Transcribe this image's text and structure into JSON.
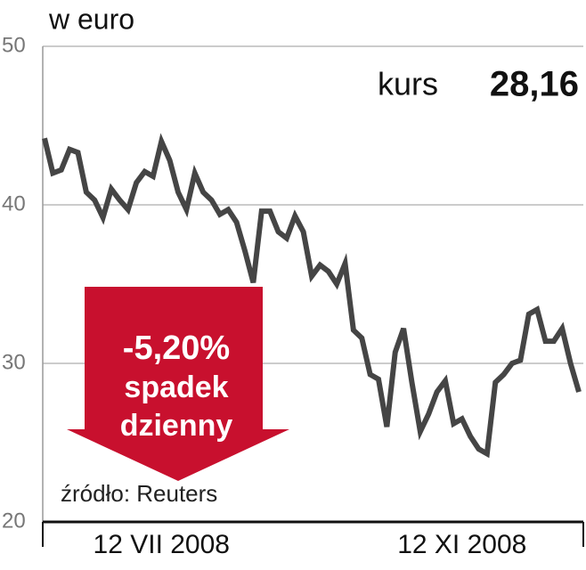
{
  "chart_data": {
    "type": "line",
    "title": "w euro",
    "annotations": {
      "kurs_label": "kurs",
      "kurs_value": "28,16",
      "change": "-5,20%",
      "line1": "spadek",
      "line2": "dzienny",
      "source": "źródło: Reuters"
    },
    "categories": [
      null,
      null,
      null,
      null,
      null,
      null,
      null,
      null,
      null,
      null,
      null,
      null,
      null,
      null,
      "12 VII 2008",
      null,
      null,
      null,
      null,
      null,
      null,
      null,
      null,
      null,
      null,
      null,
      null,
      null,
      null,
      null,
      null,
      null,
      null,
      null,
      null,
      null,
      null,
      null,
      null,
      null,
      null,
      null,
      null,
      null,
      null,
      null,
      null,
      null,
      null,
      null,
      "12 XI 2008",
      null,
      null,
      null,
      null,
      null,
      null,
      null,
      null,
      null,
      null,
      null,
      null,
      null,
      null
    ],
    "series": [
      {
        "name": "kurs",
        "color": "#454545",
        "values": [
          44.2,
          42.0,
          42.2,
          43.5,
          43.3,
          40.8,
          40.3,
          39.2,
          41.0,
          40.3,
          39.7,
          41.4,
          42.1,
          41.8,
          44.0,
          42.8,
          40.8,
          39.7,
          42.0,
          40.8,
          40.3,
          39.4,
          39.7,
          38.9,
          37.1,
          35.1,
          39.6,
          39.6,
          38.3,
          37.9,
          39.3,
          38.3,
          35.5,
          36.2,
          35.8,
          35.0,
          36.3,
          32.1,
          31.6,
          29.3,
          29.0,
          26.0,
          30.7,
          32.2,
          28.8,
          25.7,
          26.8,
          28.2,
          28.9,
          26.2,
          26.5,
          25.4,
          24.6,
          24.3,
          28.8,
          29.3,
          30.0,
          30.2,
          33.1,
          33.4,
          31.4,
          31.4,
          32.2,
          30.0,
          28.2
        ]
      }
    ],
    "ylim": [
      20,
      50
    ],
    "yticks": [
      20,
      30,
      40,
      50
    ],
    "grid": true
  }
}
